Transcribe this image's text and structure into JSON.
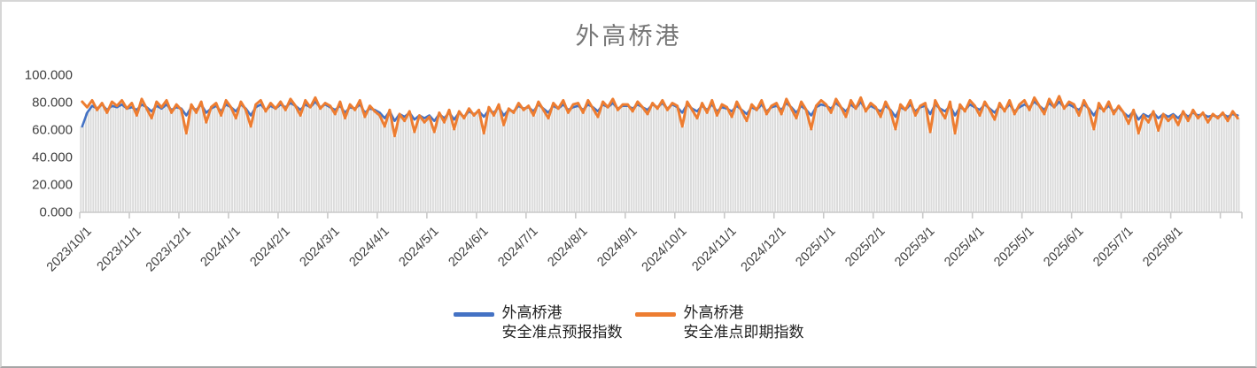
{
  "title": {
    "text": "外高桥港"
  },
  "legend": {
    "items": [
      {
        "line1": "外高桥港",
        "line2": "安全准点预报指数",
        "color": "#4472C4"
      },
      {
        "line1": "外高桥港",
        "line2": "安全准点即期指数",
        "color": "#ED7D31"
      }
    ]
  },
  "colors": {
    "series_forecast": "#4472C4",
    "series_spot": "#ED7D31",
    "background_bars": "#DBDBDB",
    "axis_line": "#C9C9C9",
    "tick_label_text": "#3F3F3F",
    "title_text": "#767676"
  },
  "chart_data": {
    "type": "line",
    "title": "外高桥港",
    "xlabel": "",
    "ylabel": "",
    "ylim": [
      0,
      100
    ],
    "gridlines": false,
    "legend_position": "bottom",
    "y_tick_values": [
      0,
      20,
      40,
      60,
      80,
      100
    ],
    "y_tick_labels": [
      "0.000",
      "20.000",
      "40.000",
      "60.000",
      "80.000",
      "100.000"
    ],
    "x_tick_labels": [
      "2023/10/1",
      "2023/11/1",
      "2023/12/1",
      "2024/1/1",
      "2024/2/1",
      "2024/3/1",
      "2024/4/1",
      "2024/5/1",
      "2024/6/1",
      "2024/7/1",
      "2024/8/1",
      "2024/9/1",
      "2024/10/1",
      "2024/11/1",
      "2024/12/1",
      "2025/1/1",
      "2025/2/1",
      "2025/3/1",
      "2025/4/1",
      "2025/5/1",
      "2025/6/1",
      "2025/7/1",
      "2025/8/1"
    ],
    "points_per_x_tick": 10,
    "background_bars": {
      "color": "#DBDBDB",
      "derive": "min-of-series"
    },
    "series": [
      {
        "name": "外高桥港安全准点预报指数",
        "display_name_lines": [
          "外高桥港",
          "安全准点预报指数"
        ],
        "color": "#4472C4",
        "values": [
          62,
          72,
          77,
          75,
          78,
          74,
          77,
          76,
          78,
          75,
          76,
          74,
          78,
          76,
          73,
          77,
          75,
          78,
          74,
          76,
          75,
          70,
          76,
          74,
          78,
          72,
          75,
          77,
          73,
          78,
          76,
          73,
          78,
          75,
          70,
          76,
          78,
          74,
          77,
          75,
          78,
          76,
          79,
          77,
          74,
          78,
          76,
          80,
          76,
          78,
          76,
          74,
          77,
          72,
          76,
          75,
          78,
          72,
          75,
          74,
          72,
          68,
          73,
          66,
          71,
          69,
          72,
          67,
          70,
          68,
          70,
          66,
          71,
          68,
          72,
          67,
          72,
          69,
          73,
          71,
          73,
          69,
          74,
          72,
          76,
          70,
          74,
          73,
          77,
          75,
          76,
          73,
          78,
          75,
          72,
          77,
          75,
          78,
          74,
          76,
          77,
          74,
          78,
          76,
          73,
          78,
          76,
          79,
          75,
          77,
          77,
          75,
          78,
          76,
          74,
          78,
          76,
          79,
          75,
          78,
          76,
          72,
          78,
          75,
          73,
          77,
          74,
          78,
          73,
          76,
          75,
          73,
          77,
          74,
          71,
          76,
          74,
          78,
          73,
          76,
          77,
          74,
          79,
          76,
          72,
          77,
          74,
          70,
          76,
          78,
          77,
          75,
          79,
          76,
          73,
          78,
          75,
          80,
          74,
          77,
          75,
          73,
          77,
          74,
          69,
          76,
          74,
          78,
          73,
          76,
          77,
          71,
          78,
          75,
          73,
          77,
          70,
          76,
          74,
          78,
          76,
          74,
          78,
          75,
          72,
          77,
          74,
          78,
          73,
          76,
          78,
          76,
          80,
          77,
          74,
          79,
          76,
          80,
          76,
          78,
          76,
          74,
          78,
          75,
          70,
          76,
          74,
          77,
          73,
          76,
          72,
          69,
          73,
          67,
          71,
          69,
          72,
          68,
          71,
          69,
          71,
          68,
          72,
          69,
          72,
          70,
          71,
          69,
          70,
          69,
          71,
          69,
          71,
          70
        ]
      },
      {
        "name": "外高桥港安全准点即期指数",
        "display_name_lines": [
          "外高桥港",
          "安全准点即期指数"
        ],
        "color": "#ED7D31",
        "values": [
          80,
          76,
          81,
          74,
          79,
          72,
          80,
          77,
          81,
          75,
          79,
          70,
          82,
          75,
          68,
          80,
          76,
          81,
          72,
          78,
          74,
          57,
          78,
          72,
          80,
          65,
          76,
          79,
          70,
          81,
          76,
          68,
          80,
          74,
          62,
          78,
          81,
          73,
          79,
          75,
          80,
          74,
          82,
          77,
          70,
          81,
          76,
          83,
          75,
          79,
          77,
          71,
          80,
          68,
          78,
          74,
          81,
          69,
          77,
          73,
          70,
          62,
          74,
          55,
          71,
          66,
          73,
          58,
          70,
          65,
          69,
          58,
          72,
          65,
          74,
          60,
          73,
          68,
          75,
          70,
          74,
          57,
          76,
          70,
          78,
          63,
          75,
          72,
          79,
          74,
          77,
          70,
          80,
          74,
          68,
          79,
          75,
          81,
          72,
          78,
          79,
          72,
          81,
          75,
          69,
          80,
          76,
          82,
          74,
          78,
          78,
          73,
          80,
          76,
          71,
          79,
          75,
          81,
          74,
          79,
          77,
          62,
          80,
          74,
          68,
          79,
          72,
          81,
          70,
          78,
          76,
          69,
          80,
          73,
          66,
          78,
          74,
          81,
          71,
          77,
          79,
          71,
          82,
          75,
          68,
          80,
          74,
          60,
          77,
          81,
          78,
          72,
          82,
          76,
          69,
          81,
          75,
          83,
          73,
          79,
          76,
          69,
          80,
          73,
          60,
          78,
          74,
          81,
          70,
          77,
          79,
          58,
          81,
          74,
          68,
          80,
          57,
          78,
          73,
          81,
          77,
          70,
          80,
          74,
          67,
          79,
          73,
          81,
          71,
          78,
          81,
          74,
          83,
          77,
          71,
          82,
          76,
          84,
          75,
          80,
          78,
          70,
          81,
          74,
          60,
          79,
          73,
          80,
          71,
          77,
          72,
          64,
          74,
          57,
          70,
          65,
          73,
          59,
          71,
          66,
          70,
          63,
          73,
          66,
          74,
          68,
          72,
          65,
          71,
          68,
          72,
          66,
          73,
          68
        ]
      }
    ]
  }
}
